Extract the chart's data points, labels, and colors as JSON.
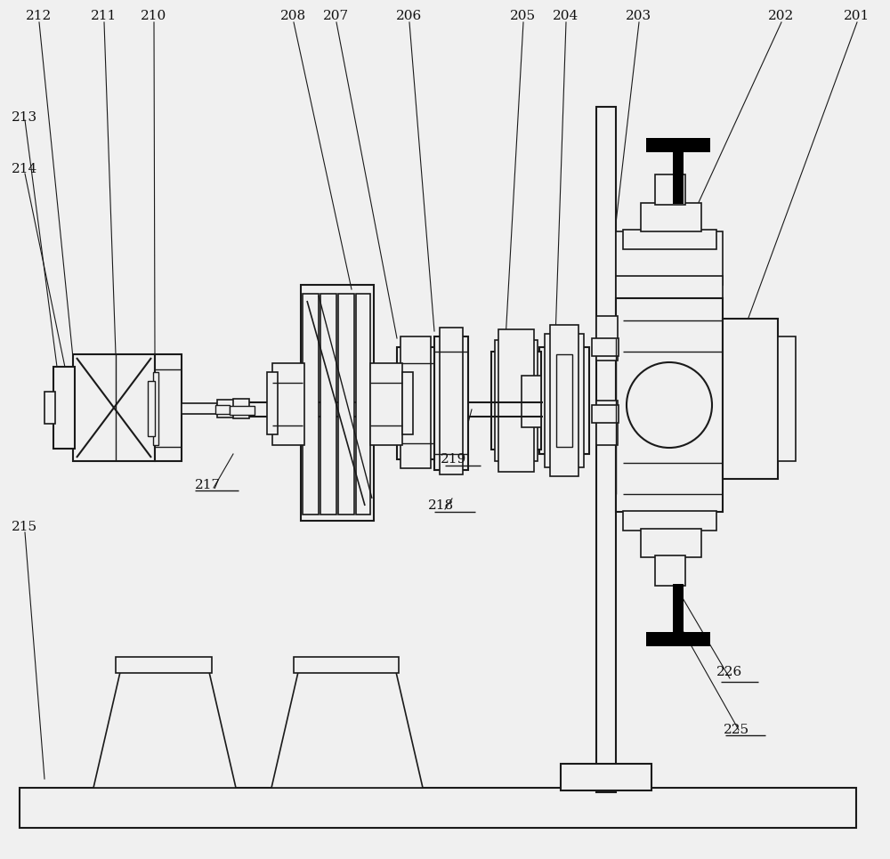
{
  "bg_color": "#f0f0f0",
  "line_color": "#1a1a1a",
  "thick_color": "#000000",
  "white": "#ffffff",
  "light_gray": "#f0f0f0"
}
